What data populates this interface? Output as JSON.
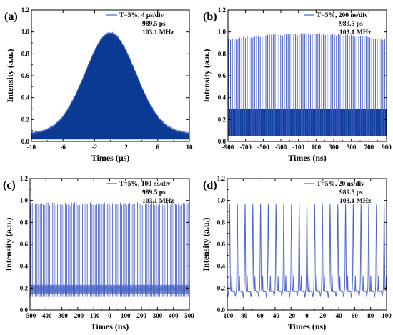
{
  "colors": {
    "trace": "#4a62c8",
    "trace_dark": "#0a3a92",
    "frame": "#000000"
  },
  "chart_data": [
    {
      "id": "a",
      "type": "line",
      "panel_label": "(a)",
      "xlabel": "Times (μs)",
      "ylabel": "Intensity (a.u.)",
      "legend": [
        "T=5%, 4 μs/div",
        "989.5 ps",
        "103.1 MHz"
      ],
      "xlim": [
        -10,
        10
      ],
      "ylim": [
        0,
        1.2
      ],
      "x_ticks": [
        -10,
        -6,
        -2,
        2,
        6,
        10
      ],
      "y_ticks": [
        0.0,
        0.2,
        0.4,
        0.6,
        0.8,
        1.0,
        1.2
      ],
      "envelope": {
        "center_us": 0.0,
        "sigma_us": 3.2,
        "peak": 0.99,
        "base": 0.07,
        "floor": 0.02
      }
    },
    {
      "id": "b",
      "type": "line",
      "panel_label": "(b)",
      "xlabel": "Times (ns)",
      "ylabel": "Intensity (a.u.)",
      "legend": [
        "T=5%, 200 ns/div",
        "989.5 ps",
        "103.1 MHz"
      ],
      "xlim": [
        -900,
        900
      ],
      "ylim": [
        0,
        1.2
      ],
      "x_ticks": [
        -900,
        -700,
        -500,
        -300,
        -100,
        100,
        300,
        500,
        700,
        900
      ],
      "y_ticks": [
        0.0,
        0.2,
        0.4,
        0.6,
        0.8,
        1.0,
        1.2
      ],
      "pulse_peak_edges": 0.93,
      "pulse_peak_center": 0.98,
      "background_band": [
        0.05,
        0.3
      ]
    },
    {
      "id": "c",
      "type": "line",
      "panel_label": "(c)",
      "xlabel": "Times (ns)",
      "ylabel": "Intensity (a.u.)",
      "legend": [
        "T=5%, 100 ns/div",
        "989.5 ps",
        "103.1 MHz"
      ],
      "xlim": [
        -500,
        500
      ],
      "ylim": [
        0,
        1.2
      ],
      "x_ticks": [
        -500,
        -400,
        -300,
        -200,
        -100,
        0,
        100,
        200,
        300,
        400,
        500
      ],
      "y_ticks": [
        0.0,
        0.2,
        0.4,
        0.6,
        0.8,
        1.0,
        1.2
      ],
      "pulse_peak": 0.97,
      "background_band": [
        0.15,
        0.23
      ]
    },
    {
      "id": "d",
      "type": "line",
      "panel_label": "(d)",
      "xlabel": "Times (ns)",
      "ylabel": "Intensity (a.u.)",
      "legend": [
        "T=5%, 20 ns/div",
        "989.5 ps",
        "103.1 MHz"
      ],
      "xlim": [
        -100,
        100
      ],
      "ylim": [
        0,
        1.2
      ],
      "x_ticks": [
        -100,
        -80,
        -60,
        -40,
        -20,
        0,
        20,
        40,
        60,
        80,
        100
      ],
      "y_ticks": [
        0.0,
        0.2,
        0.4,
        0.6,
        0.8,
        1.0,
        1.2
      ],
      "pulse_period_ns": 9.7,
      "first_pulse_ns": -97,
      "pulse_peak": 0.97,
      "pulse_width_ns": 0.99,
      "baseline": 0.17,
      "secondary_peak": 0.31
    }
  ]
}
